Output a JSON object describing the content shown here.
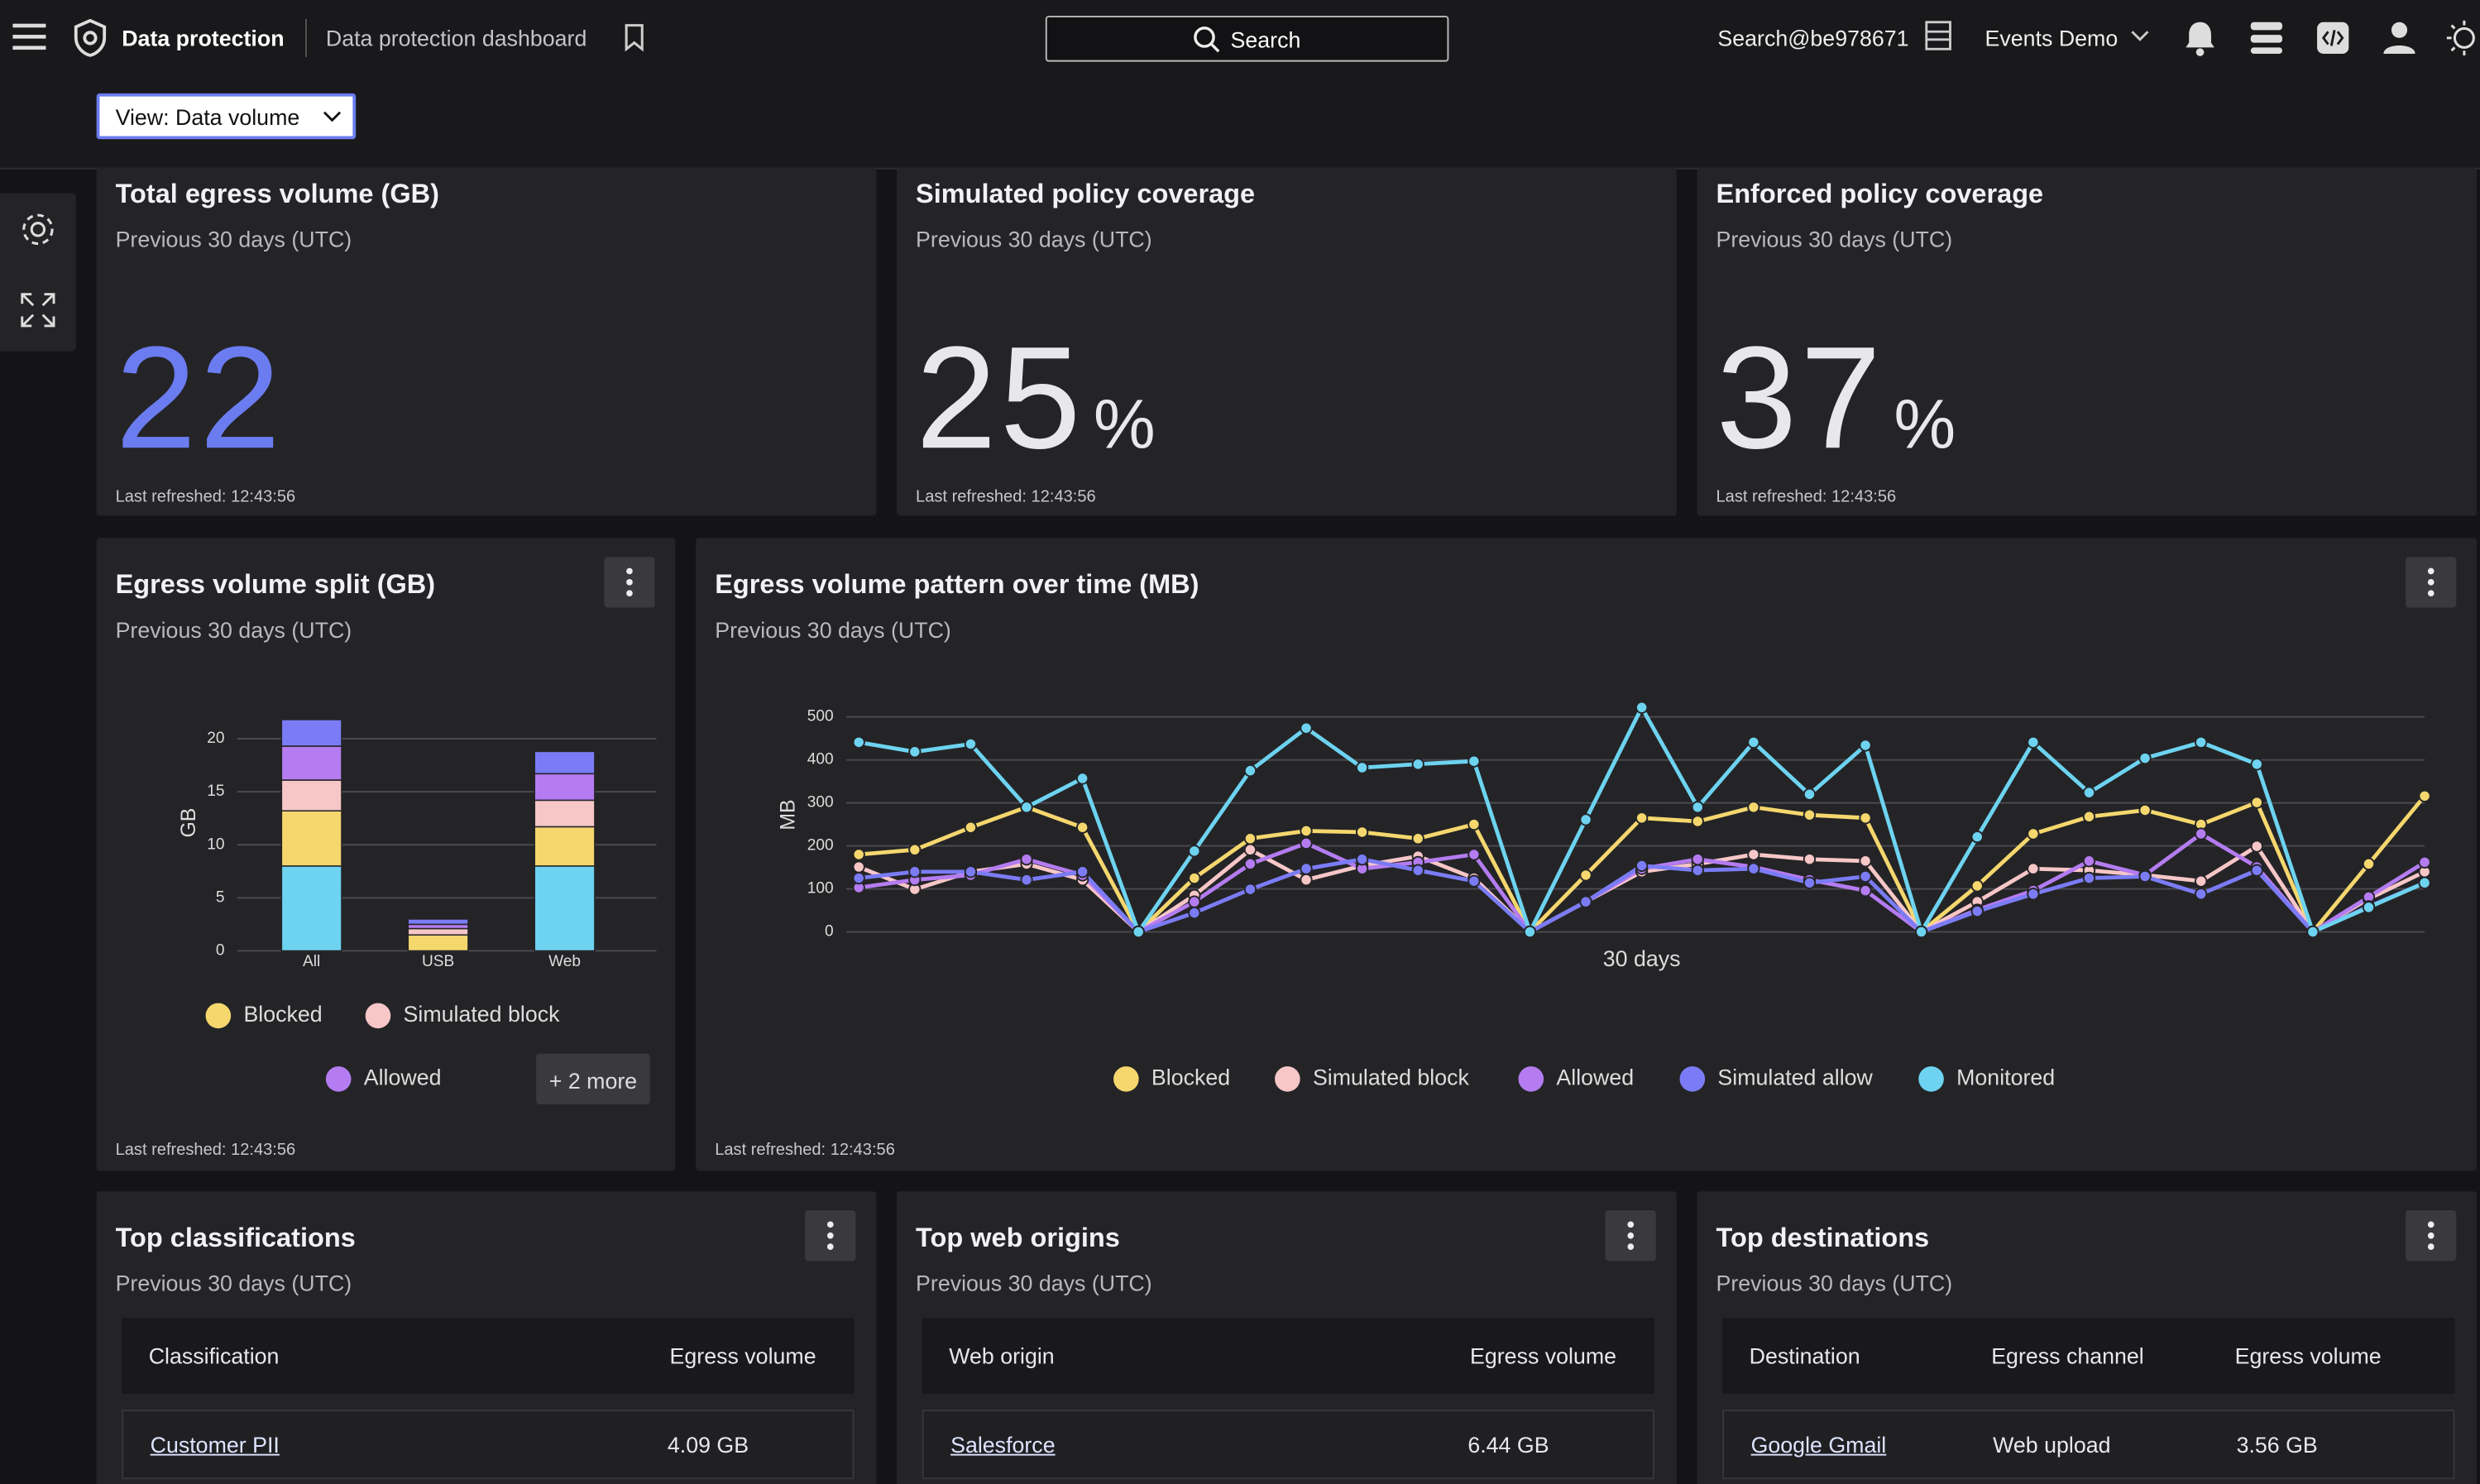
{
  "header": {
    "app_name": "Data protection",
    "page_name": "Data protection dashboard",
    "search": "Search",
    "account": "Search@be978671",
    "org": "Events Demo"
  },
  "view_selector": "View: Data volume",
  "kpis": [
    {
      "title": "Total egress volume (GB)",
      "subtitle": "Previous 30 days (UTC)",
      "value": 22,
      "refreshed": "Last refreshed: 12:43:56"
    },
    {
      "title": "Simulated policy coverage",
      "subtitle": "Previous 30 days (UTC)",
      "value": 25,
      "unit": "%",
      "refreshed": "Last refreshed: 12:43:56"
    },
    {
      "title": "Enforced policy coverage",
      "subtitle": "Previous 30 days (UTC)",
      "value": 37,
      "unit": "%",
      "refreshed": "Last refreshed: 12:43:56"
    }
  ],
  "chart_data": [
    {
      "type": "stacked_bar",
      "title": "Egress volume split (GB)",
      "subtitle": "Previous 30 days (UTC)",
      "y_label": "GB",
      "categories": [
        "All",
        "USB",
        "Web"
      ],
      "series": [
        {
          "name": "Monitored",
          "color": "#6dd3f0",
          "values": [
            8.0,
            0,
            8.0
          ]
        },
        {
          "name": "Blocked",
          "color": "#f5d76e",
          "values": [
            5.2,
            1.5,
            3.7
          ]
        },
        {
          "name": "Simulated block",
          "color": "#f7c6c7",
          "values": [
            2.9,
            0.6,
            2.5
          ]
        },
        {
          "name": "Allowed",
          "color": "#b47cf0",
          "values": [
            3.2,
            0.4,
            2.5
          ]
        },
        {
          "name": "Simulated allow",
          "color": "#7b7cf5",
          "values": [
            2.5,
            0.5,
            2.1
          ]
        }
      ],
      "ylim": [
        0,
        22
      ],
      "yticks": [
        0,
        5,
        10,
        15,
        20
      ],
      "grid": true,
      "legend_more": "+ 2 more",
      "refreshed": "Last refreshed: 12:43:56"
    },
    {
      "type": "line",
      "title": "Egress volume pattern over time (MB)",
      "subtitle": "Previous 30 days (UTC)",
      "y_label": "MB",
      "x_label": "30 days",
      "categories": [
        null,
        null,
        null,
        null,
        null,
        null,
        null,
        null,
        null,
        null,
        null,
        null,
        null,
        null,
        null,
        null,
        null,
        null,
        null,
        null,
        null,
        null,
        null,
        null,
        null,
        null,
        null,
        null,
        null
      ],
      "series": [
        {
          "name": "Blocked",
          "color": "#f5d76e",
          "values": [
            180,
            191,
            243,
            290,
            243,
            0,
            125,
            217,
            235,
            232,
            217,
            250,
            0,
            132,
            265,
            257,
            290,
            272,
            265,
            0,
            107,
            228,
            268,
            283,
            250,
            301,
            0,
            158,
            316
          ]
        },
        {
          "name": "Simulated block",
          "color": "#f7c6c7",
          "values": [
            151,
            99,
            140,
            158,
            121,
            0,
            85,
            191,
            121,
            154,
            176,
            125,
            0,
            70,
            140,
            158,
            180,
            169,
            165,
            0,
            70,
            147,
            143,
            132,
            118,
            199,
            0,
            77,
            140
          ]
        },
        {
          "name": "Allowed",
          "color": "#b47cf0",
          "values": [
            103,
            121,
            132,
            169,
            132,
            0,
            70,
            158,
            206,
            147,
            162,
            180,
            0,
            70,
            147,
            169,
            151,
            121,
            96,
            0,
            51,
            96,
            165,
            132,
            228,
            151,
            0,
            81,
            162
          ]
        },
        {
          "name": "Simulated allow",
          "color": "#7b7cf5",
          "values": [
            125,
            140,
            140,
            121,
            140,
            0,
            44,
            99,
            147,
            169,
            143,
            118,
            0,
            70,
            154,
            143,
            147,
            114,
            129,
            0,
            48,
            88,
            125,
            129,
            88,
            143,
            0,
            59,
            114
          ]
        },
        {
          "name": "Monitored",
          "color": "#6dd3f0",
          "values": [
            441,
            419,
            437,
            290,
            357,
            0,
            188,
            375,
            474,
            382,
            390,
            397,
            0,
            261,
            522,
            290,
            441,
            320,
            434,
            0,
            221,
            441,
            324,
            404,
            441,
            390,
            0,
            57,
            114
          ]
        }
      ],
      "ylim": [
        0,
        530
      ],
      "yticks": [
        0,
        100,
        200,
        300,
        400,
        500
      ],
      "grid": true,
      "refreshed": "Last refreshed: 12:43:56"
    }
  ],
  "tables": [
    {
      "title": "Top classifications",
      "subtitle": "Previous 30 days (UTC)",
      "columns": [
        "Classification",
        "Egress volume"
      ],
      "rows": [
        [
          "Customer PII",
          "4.09 GB"
        ]
      ]
    },
    {
      "title": "Top web origins",
      "subtitle": "Previous 30 days (UTC)",
      "columns": [
        "Web origin",
        "Egress volume"
      ],
      "rows": [
        [
          "Salesforce",
          "6.44 GB"
        ]
      ]
    },
    {
      "title": "Top destinations",
      "subtitle": "Previous 30 days (UTC)",
      "columns": [
        "Destination",
        "Egress channel",
        "Egress volume"
      ],
      "rows": [
        [
          "Google Gmail",
          "Web upload",
          "3.56 GB"
        ]
      ]
    }
  ]
}
